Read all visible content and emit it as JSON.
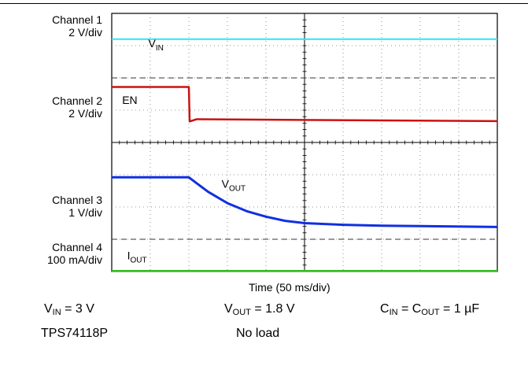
{
  "chart_data": {
    "type": "line",
    "grid": "on (10 x 8 divisions, dotted)",
    "xlabel": "Time (50 ms/div)",
    "channels": [
      {
        "name": "Channel 1",
        "scale": "2 V/div",
        "color": "#2ee6f0"
      },
      {
        "name": "Channel 2",
        "scale": "2 V/div",
        "color": "#cc1111"
      },
      {
        "name": "Channel 3",
        "scale": "1 V/div",
        "color": "#1030e0"
      },
      {
        "name": "Channel 4",
        "scale": "100 mA/div",
        "color": "#33bb22"
      }
    ],
    "traces": [
      {
        "label_main": "V",
        "label_sub": "IN",
        "channel": 1,
        "units": "div",
        "x": [
          0,
          10
        ],
        "y": [
          7.2,
          7.2
        ]
      },
      {
        "label_main": "EN",
        "label_sub": "",
        "channel": 2,
        "units": "div",
        "x": [
          0,
          2.0,
          2.02,
          2.2,
          10
        ],
        "y": [
          5.72,
          5.72,
          4.65,
          4.72,
          4.66
        ]
      },
      {
        "label_main": "V",
        "label_sub": "OUT",
        "channel": 3,
        "units": "div",
        "x": [
          0,
          2.0,
          2.5,
          3.0,
          3.5,
          4.0,
          4.5,
          5.0,
          6.0,
          7.0,
          8.0,
          10.0
        ],
        "y": [
          2.92,
          2.92,
          2.47,
          2.12,
          1.87,
          1.7,
          1.57,
          1.5,
          1.45,
          1.42,
          1.41,
          1.38
        ]
      },
      {
        "label_main": "I",
        "label_sub": "OUT",
        "channel": 4,
        "units": "div",
        "x": [
          0,
          10
        ],
        "y": [
          0.02,
          0.02
        ]
      }
    ]
  },
  "labels": {
    "ch1_name": "Channel 1",
    "ch1_scale": "2 V/div",
    "ch2_name": "Channel 2",
    "ch2_scale": "2 V/div",
    "ch3_name": "Channel 3",
    "ch3_scale": "1 V/div",
    "ch4_name": "Channel 4",
    "ch4_scale": "100 mA/div"
  },
  "footer": {
    "vin": {
      "main": "V",
      "sub": "IN",
      "rest": " = 3 V"
    },
    "vout": {
      "main": "V",
      "sub": "OUT",
      "rest": " = 1.8 V"
    },
    "cap": {
      "a_main": "C",
      "a_sub": "IN",
      "mid": " = C",
      "b_sub": "OUT",
      "rest": " = 1 µF"
    },
    "part": "TPS74118P",
    "load": "No load"
  }
}
